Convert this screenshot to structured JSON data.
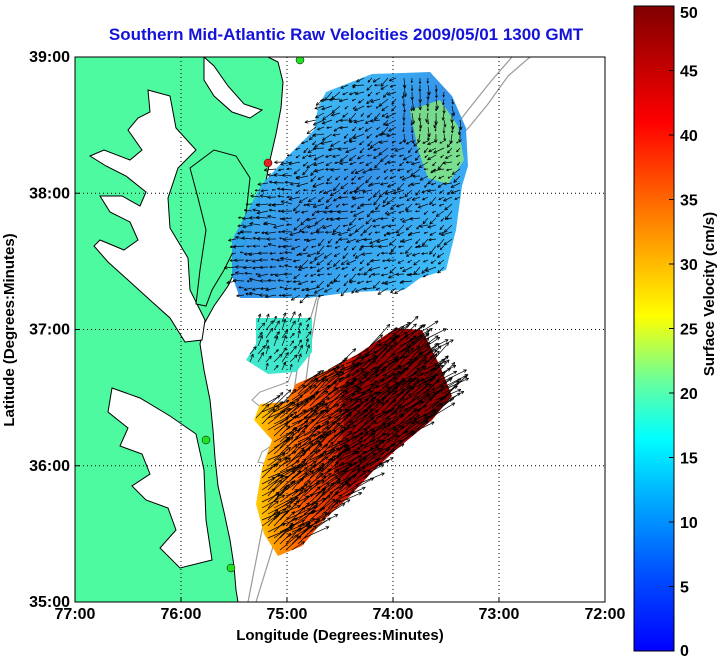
{
  "chart_data": {
    "type": "heatmap",
    "title": "Southern Mid-Atlantic Raw Velocities 2009/05/01 1300 GMT",
    "xlabel": "Longitude (Degrees:Minutes)",
    "ylabel": "Latitude (Degrees:Minutes)",
    "xlim": [
      -77,
      -72
    ],
    "ylim": [
      35,
      39
    ],
    "x_ticks": [
      -77,
      -76,
      -75,
      -74,
      -73,
      -72
    ],
    "x_tick_labels": [
      "77:00",
      "76:00",
      "75:00",
      "74:00",
      "73:00",
      "72:00"
    ],
    "y_ticks": [
      35,
      36,
      37,
      38,
      39
    ],
    "y_tick_labels": [
      "35:00",
      "36:00",
      "37:00",
      "38:00",
      "39:00"
    ],
    "grid": true,
    "colorbar": {
      "label": "Surface Velocity (cm/s)",
      "range": [
        0,
        50
      ],
      "ticks": [
        0,
        5,
        10,
        15,
        20,
        25,
        30,
        35,
        40,
        45,
        50
      ],
      "tick_labels": [
        "0",
        "5",
        "10",
        "15",
        "20",
        "25",
        "30",
        "35",
        "40",
        "45",
        "50"
      ]
    },
    "fields": [
      {
        "region": "north",
        "lon_range": [
          -75.5,
          -73.6
        ],
        "lat_range": [
          37.3,
          38.95
        ],
        "speed_range_cm_s": [
          5,
          20
        ],
        "typical_speed_cm_s": 10,
        "flow_direction": "southwestward"
      },
      {
        "region": "south",
        "lon_range": [
          -75.5,
          -73.8
        ],
        "lat_range": [
          35.45,
          37.0
        ],
        "speed_range_cm_s": [
          20,
          50
        ],
        "typical_speed_cm_s": 45,
        "flow_direction": "northeastward"
      }
    ],
    "colors": {
      "land": "#4dfaa0",
      "coast": "#000000",
      "bathymetry": "#9a9a9a",
      "station": "#22e022",
      "station_alert": "#e82020"
    }
  }
}
